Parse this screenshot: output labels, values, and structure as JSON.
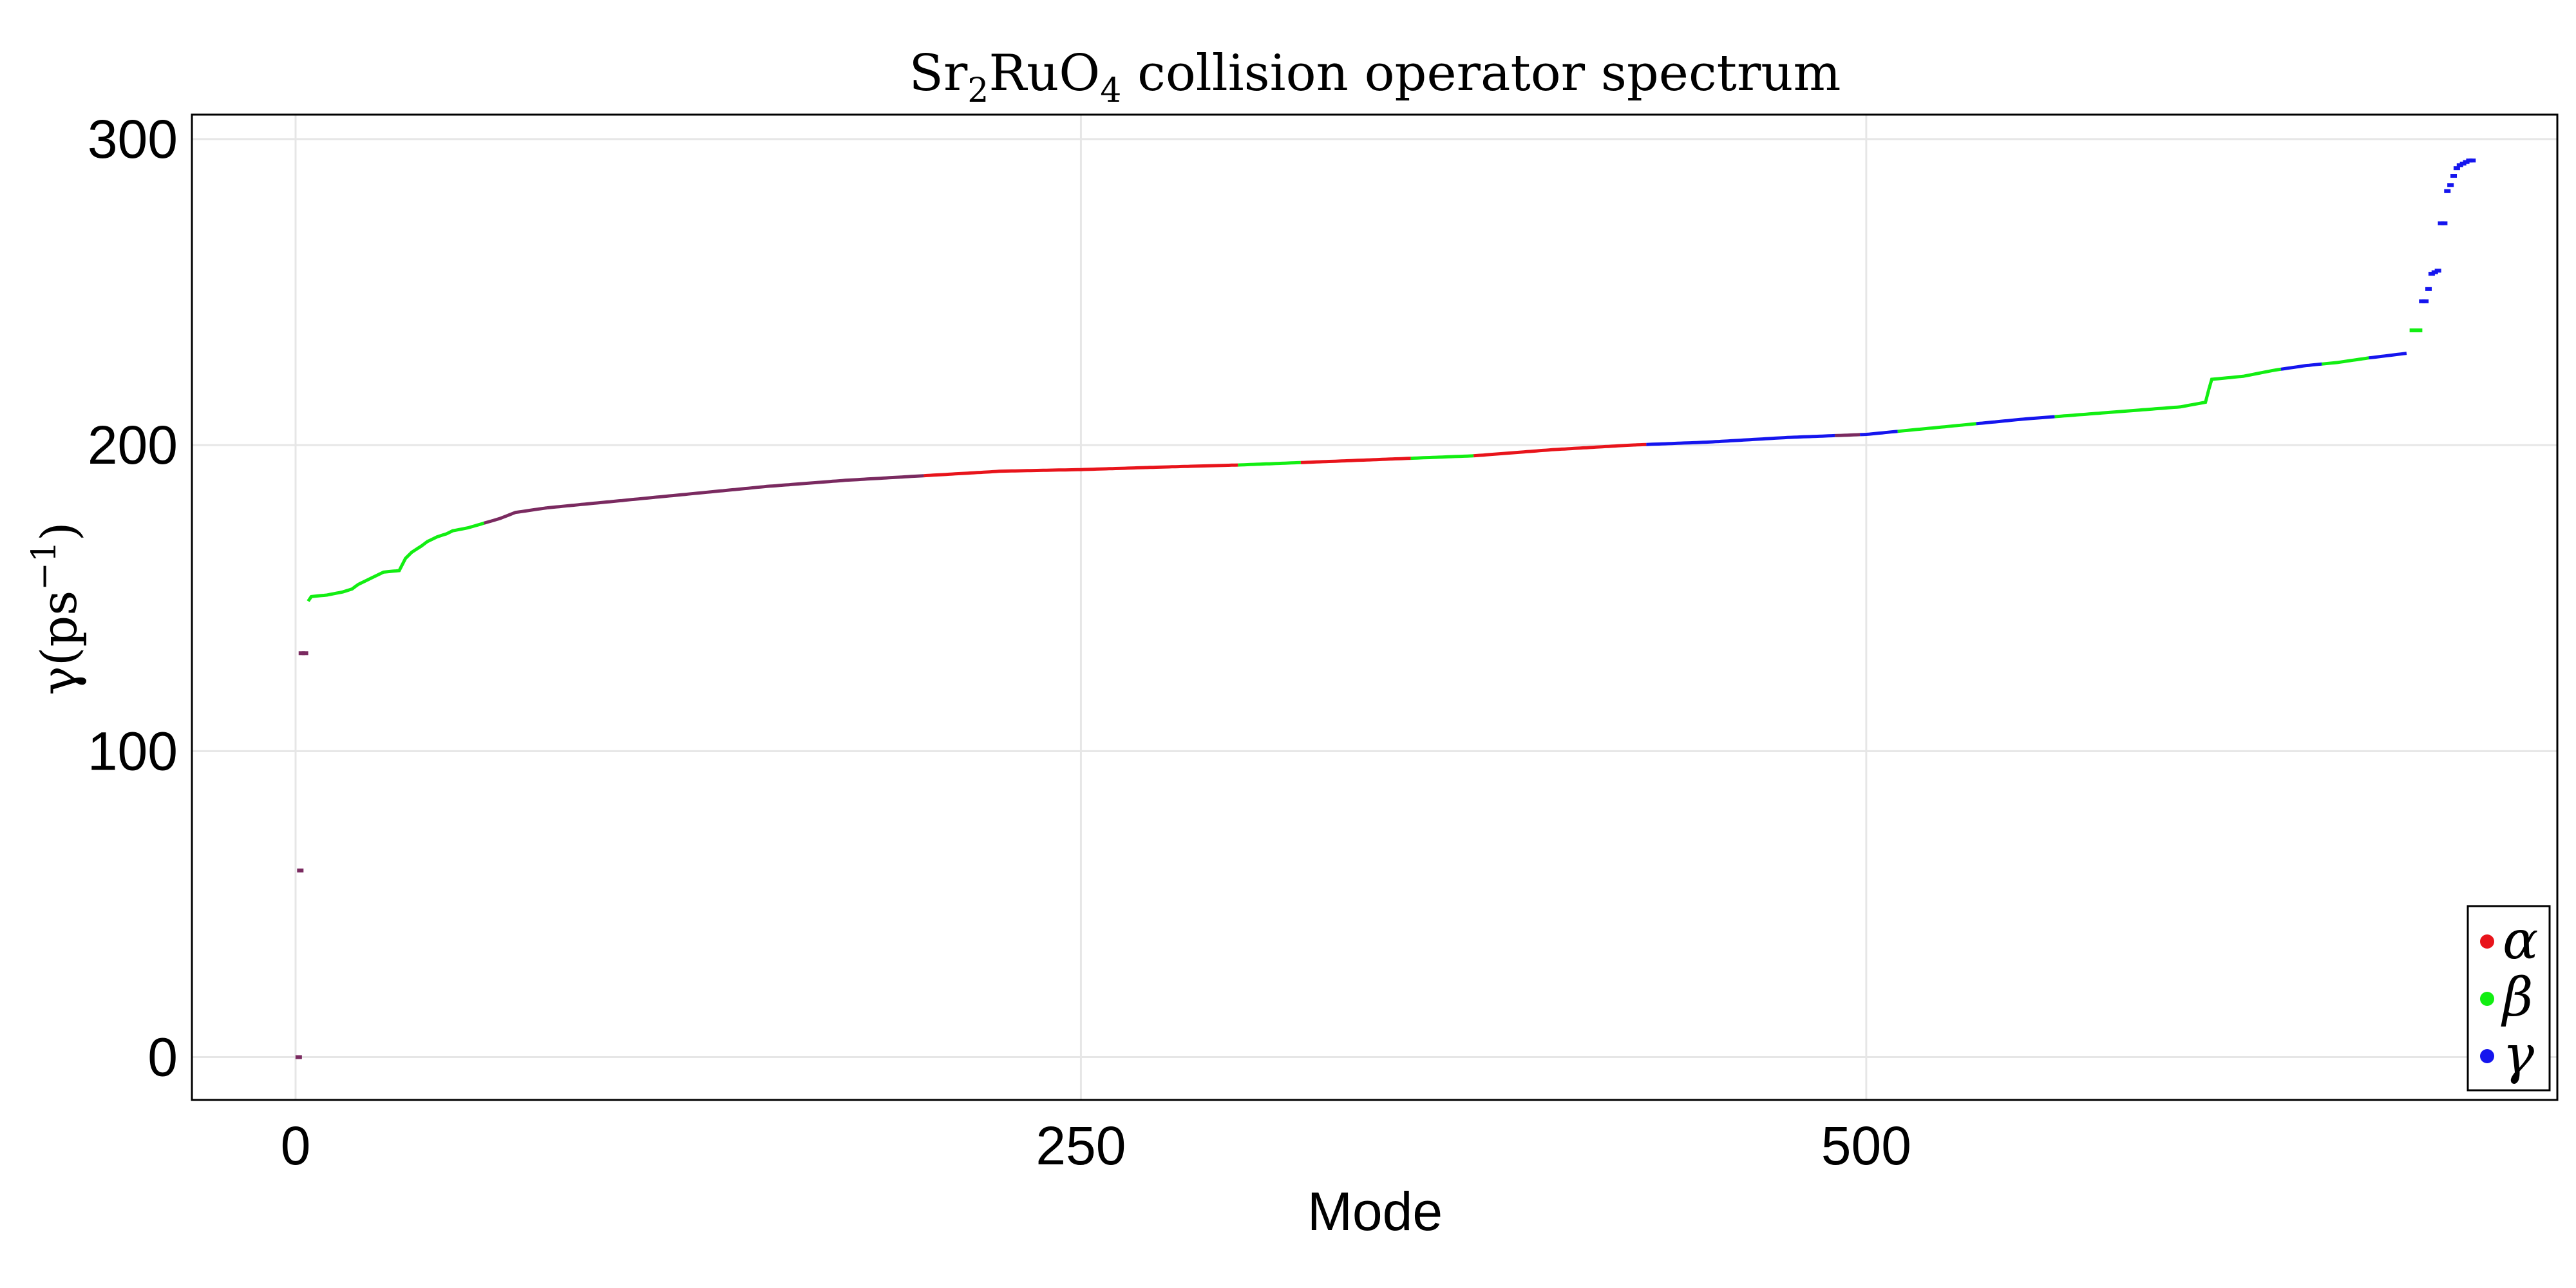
{
  "chart_data": {
    "type": "scatter",
    "title": {
      "base1": "Sr",
      "sub1": "2",
      "base2": "RuO",
      "sub2": "4",
      "rest": " collision operator spectrum"
    },
    "xlabel": "Mode",
    "ylabel": {
      "main": "γ(ps",
      "sup": "−1",
      "close": ")"
    },
    "xlim": [
      -33,
      720
    ],
    "ylim": [
      -14,
      308
    ],
    "x_ticks": [
      0,
      250,
      500
    ],
    "y_ticks": [
      0,
      100,
      200,
      300
    ],
    "grid": true,
    "legend_position": "bottom-right",
    "colors": {
      "alpha": "#e8141b",
      "beta": "#12ee12",
      "gamma": "#1515ee",
      "mixed": "#7a2a60",
      "grid": "#e6e6e6",
      "frame": "#000000"
    },
    "legend": [
      {
        "key": "alpha",
        "label": "α",
        "color": "#e8141b"
      },
      {
        "key": "beta",
        "label": "β",
        "color": "#12ee12"
      },
      {
        "key": "gamma",
        "label": "γ",
        "color": "#1515ee"
      }
    ],
    "curve_knots": [
      [
        4,
        149
      ],
      [
        5,
        150.5
      ],
      [
        10,
        151
      ],
      [
        15,
        152
      ],
      [
        18,
        153
      ],
      [
        20,
        154.5
      ],
      [
        23,
        156
      ],
      [
        25,
        157
      ],
      [
        28,
        158.5
      ],
      [
        33,
        159
      ],
      [
        35,
        163
      ],
      [
        37,
        165
      ],
      [
        40,
        167
      ],
      [
        42,
        168.5
      ],
      [
        45,
        170
      ],
      [
        48,
        171
      ],
      [
        50,
        172
      ],
      [
        55,
        173
      ],
      [
        60,
        174.5
      ],
      [
        65,
        176
      ],
      [
        70,
        178
      ],
      [
        80,
        179.5
      ],
      [
        90,
        180.5
      ],
      [
        100,
        181.5
      ],
      [
        125,
        184
      ],
      [
        150,
        186.5
      ],
      [
        175,
        188.5
      ],
      [
        200,
        190
      ],
      [
        225,
        191.5
      ],
      [
        250,
        192
      ],
      [
        275,
        192.8
      ],
      [
        300,
        193.5
      ],
      [
        325,
        194.5
      ],
      [
        350,
        195.5
      ],
      [
        375,
        196.5
      ],
      [
        400,
        198.5
      ],
      [
        425,
        200
      ],
      [
        450,
        201
      ],
      [
        475,
        202.5
      ],
      [
        500,
        203.5
      ],
      [
        525,
        206
      ],
      [
        550,
        208.5
      ],
      [
        575,
        210.5
      ],
      [
        600,
        212.5
      ],
      [
        608,
        214
      ],
      [
        609,
        218
      ],
      [
        610,
        221.5
      ],
      [
        620,
        222.5
      ],
      [
        630,
        224.5
      ],
      [
        640,
        226
      ],
      [
        650,
        227
      ],
      [
        660,
        228.5
      ],
      [
        668,
        229.5
      ],
      [
        672,
        230
      ]
    ],
    "band_segments": [
      {
        "from": 4,
        "to": 60,
        "color": "beta"
      },
      {
        "from": 60,
        "to": 80,
        "color": "mixed"
      },
      {
        "from": 80,
        "to": 200,
        "color": "mixed"
      },
      {
        "from": 200,
        "to": 300,
        "color": "alpha"
      },
      {
        "from": 300,
        "to": 320,
        "color": "beta"
      },
      {
        "from": 320,
        "to": 355,
        "color": "alpha"
      },
      {
        "from": 355,
        "to": 375,
        "color": "beta"
      },
      {
        "from": 375,
        "to": 430,
        "color": "alpha"
      },
      {
        "from": 430,
        "to": 490,
        "color": "gamma"
      },
      {
        "from": 490,
        "to": 498,
        "color": "mixed"
      },
      {
        "from": 498,
        "to": 510,
        "color": "gamma"
      },
      {
        "from": 510,
        "to": 535,
        "color": "beta"
      },
      {
        "from": 535,
        "to": 560,
        "color": "gamma"
      },
      {
        "from": 560,
        "to": 609,
        "color": "beta"
      },
      {
        "from": 609,
        "to": 632,
        "color": "beta"
      },
      {
        "from": 632,
        "to": 645,
        "color": "gamma"
      },
      {
        "from": 645,
        "to": 660,
        "color": "beta"
      },
      {
        "from": 660,
        "to": 672,
        "color": "gamma"
      }
    ],
    "isolated_points": [
      {
        "x": 1,
        "y": 0,
        "color": "mixed"
      },
      {
        "x": 1.5,
        "y": 61,
        "color": "mixed"
      },
      {
        "x": 2,
        "y": 132,
        "color": "mixed"
      },
      {
        "x": 3,
        "y": 132,
        "color": "mixed"
      },
      {
        "x": 674,
        "y": 237.5,
        "color": "beta"
      },
      {
        "x": 675,
        "y": 237.5,
        "color": "beta"
      },
      {
        "x": 676,
        "y": 237.5,
        "color": "beta"
      },
      {
        "x": 677,
        "y": 247,
        "color": "gamma"
      },
      {
        "x": 678,
        "y": 247,
        "color": "gamma"
      },
      {
        "x": 679,
        "y": 251,
        "color": "gamma"
      },
      {
        "x": 680,
        "y": 256,
        "color": "gamma"
      },
      {
        "x": 681,
        "y": 256.5,
        "color": "gamma"
      },
      {
        "x": 682,
        "y": 257,
        "color": "gamma"
      },
      {
        "x": 683,
        "y": 272.5,
        "color": "gamma"
      },
      {
        "x": 684,
        "y": 272.5,
        "color": "gamma"
      },
      {
        "x": 685,
        "y": 283,
        "color": "gamma"
      },
      {
        "x": 686,
        "y": 285,
        "color": "gamma"
      },
      {
        "x": 687,
        "y": 288,
        "color": "gamma"
      },
      {
        "x": 688,
        "y": 290.5,
        "color": "gamma"
      },
      {
        "x": 689,
        "y": 291.5,
        "color": "gamma"
      },
      {
        "x": 690,
        "y": 292,
        "color": "gamma"
      },
      {
        "x": 691,
        "y": 292.5,
        "color": "gamma"
      },
      {
        "x": 692,
        "y": 293,
        "color": "gamma"
      },
      {
        "x": 693,
        "y": 293,
        "color": "gamma"
      }
    ]
  }
}
